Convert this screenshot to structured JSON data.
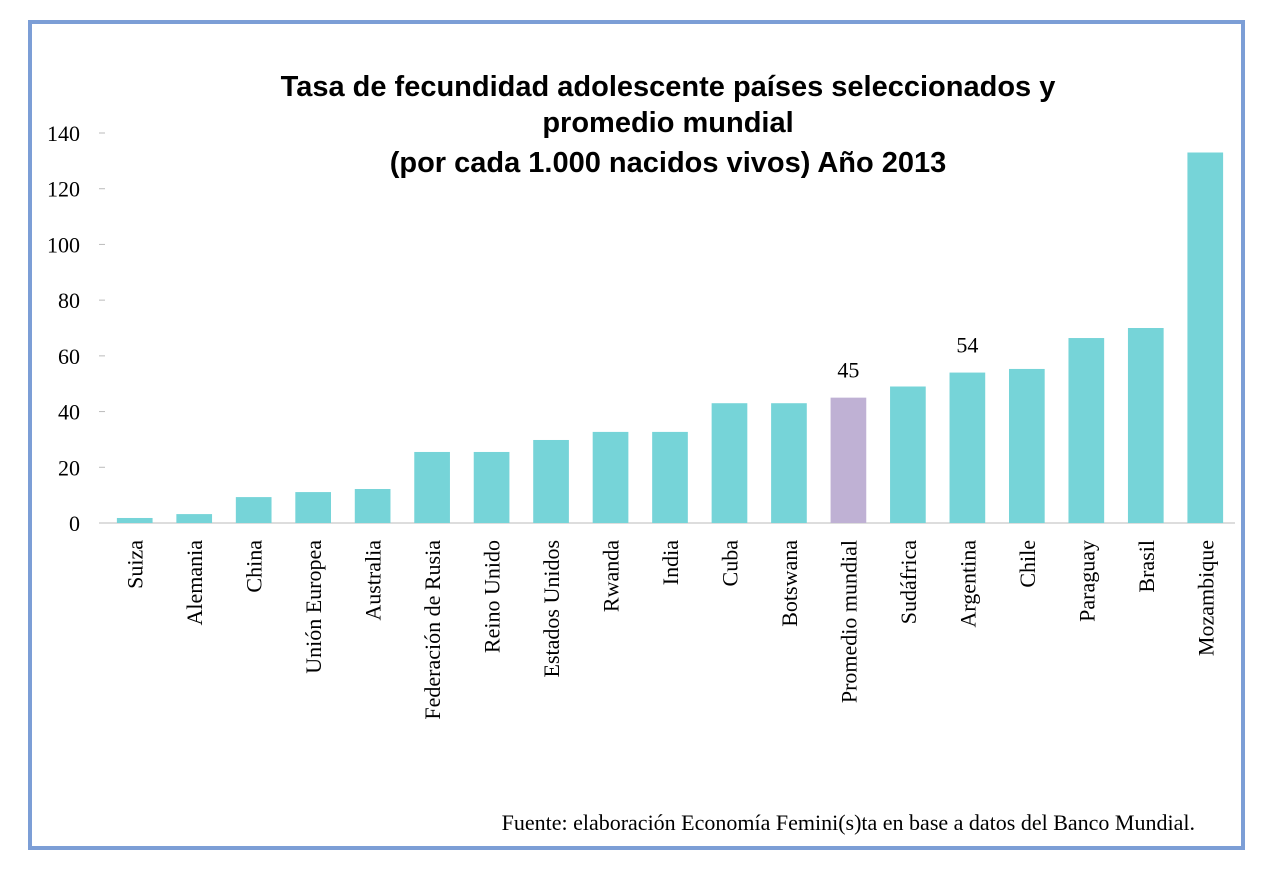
{
  "chart_data": {
    "type": "bar",
    "title": [
      "Tasa de fecundidad adolescente países seleccionados y",
      "promedio mundial",
      "(por cada 1.000 nacidos vivos) Año 2013"
    ],
    "categories": [
      "Suiza",
      "Alemania",
      "China",
      "Unión Europea",
      "Australia",
      "Federación de Rusia",
      "Reino Unido",
      "Estados Unidos",
      "Rwanda",
      "India",
      "Cuba",
      "Botswana",
      "Promedio mundial",
      "Sudáfrica",
      "Argentina",
      "Chile",
      "Paraguay",
      "Brasil",
      "Mozambique"
    ],
    "values": [
      1.8,
      3.2,
      9.3,
      11.1,
      12.2,
      25.5,
      25.5,
      29.8,
      32.7,
      32.7,
      43,
      43,
      45,
      49,
      54,
      55.3,
      66.4,
      70,
      133
    ],
    "value_labels": [
      null,
      null,
      null,
      null,
      null,
      null,
      null,
      null,
      null,
      null,
      null,
      null,
      "45",
      null,
      "54",
      null,
      null,
      null,
      null
    ],
    "colors": [
      "#76d4d8",
      "#76d4d8",
      "#76d4d8",
      "#76d4d8",
      "#76d4d8",
      "#76d4d8",
      "#76d4d8",
      "#76d4d8",
      "#76d4d8",
      "#76d4d8",
      "#76d4d8",
      "#76d4d8",
      "#bfb1d4",
      "#76d4d8",
      "#76d4d8",
      "#76d4d8",
      "#76d4d8",
      "#76d4d8",
      "#76d4d8"
    ],
    "ylim": [
      0,
      140
    ],
    "yticks": [
      0,
      20,
      40,
      60,
      80,
      100,
      120,
      140
    ],
    "grid": false,
    "source": "Fuente: elaboración Economía Femini(s)ta en base a datos del Banco Mundial."
  }
}
